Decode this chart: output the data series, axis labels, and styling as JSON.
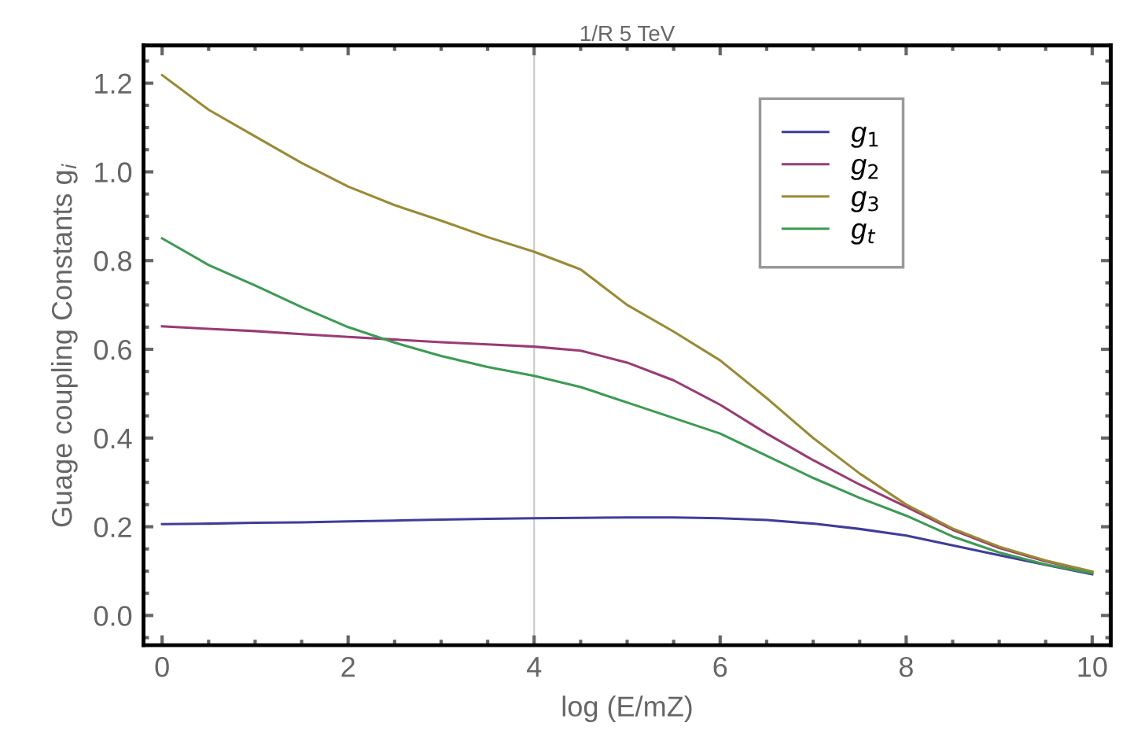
{
  "chart_data": {
    "type": "line",
    "title": "1/R 5 TeV",
    "xlabel": "log (E/mZ)",
    "ylabel": "Guage coupling Constants g$_{i}$",
    "x": [
      0,
      0.5,
      1,
      1.5,
      2,
      2.5,
      3,
      3.5,
      4,
      4.5,
      5,
      5.5,
      6,
      6.5,
      7,
      7.5,
      8,
      8.5,
      9,
      9.5,
      10
    ],
    "series": [
      {
        "name": "g$_{1}$",
        "color": "#3f3d99",
        "values": [
          0.206,
          0.207,
          0.209,
          0.21,
          0.212,
          0.214,
          0.216,
          0.218,
          0.219,
          0.22,
          0.221,
          0.221,
          0.219,
          0.215,
          0.207,
          0.195,
          0.18,
          0.158,
          0.136,
          0.114,
          0.093
        ]
      },
      {
        "name": "g$_{2}$",
        "color": "#9b3a74",
        "values": [
          0.652,
          0.646,
          0.641,
          0.634,
          0.628,
          0.622,
          0.616,
          0.611,
          0.606,
          0.597,
          0.57,
          0.53,
          0.475,
          0.41,
          0.35,
          0.295,
          0.245,
          0.193,
          0.152,
          0.122,
          0.098
        ]
      },
      {
        "name": "g$_{3}$",
        "color": "#9a8a33",
        "values": [
          1.218,
          1.14,
          1.08,
          1.02,
          0.967,
          0.925,
          0.89,
          0.853,
          0.82,
          0.78,
          0.7,
          0.64,
          0.575,
          0.49,
          0.4,
          0.32,
          0.25,
          0.196,
          0.155,
          0.124,
          0.099
        ]
      },
      {
        "name": "g$_{t}$",
        "color": "#3c9b52",
        "values": [
          0.85,
          0.79,
          0.744,
          0.695,
          0.65,
          0.615,
          0.585,
          0.56,
          0.54,
          0.515,
          0.48,
          0.445,
          0.41,
          0.36,
          0.31,
          0.265,
          0.225,
          0.178,
          0.142,
          0.115,
          0.095
        ]
      }
    ],
    "xlim": [
      -0.2,
      10.2
    ],
    "ylim": [
      -0.067,
      1.285
    ],
    "xticks": [
      0,
      2,
      4,
      6,
      8,
      10
    ],
    "yticks": [
      {
        "value": 0,
        "label": "0.0"
      },
      {
        "value": 0.2,
        "label": "0.2"
      },
      {
        "value": 0.4,
        "label": "0.4"
      },
      {
        "value": 0.6,
        "label": "0.6"
      },
      {
        "value": 0.8,
        "label": "0.8"
      },
      {
        "value": 1.0,
        "label": "1.0"
      },
      {
        "value": 1.2,
        "label": "1.2"
      }
    ],
    "ref_lines": [
      {
        "axis": "x",
        "value": 4,
        "color": "#c8c8c8"
      }
    ],
    "legend": "top right",
    "grid": false,
    "marker": "none",
    "line_style": "solid"
  }
}
